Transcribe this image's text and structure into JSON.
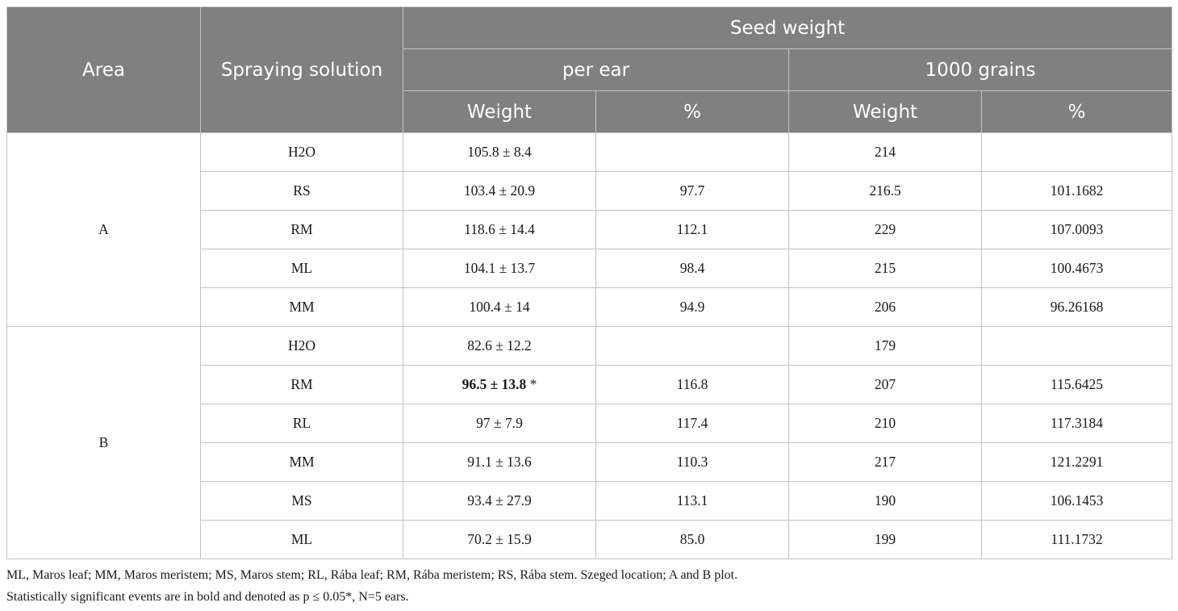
{
  "table": {
    "headers": {
      "area": "Area",
      "spraying_solution": "Spraying solution",
      "seed_weight": "Seed weight",
      "per_ear": "per ear",
      "grains_1000": "1000 grains",
      "weight_1": "Weight",
      "percent_1": "%",
      "weight_2": "Weight",
      "percent_2": "%"
    },
    "groups": [
      {
        "area": "A",
        "rows": [
          {
            "solution": "H2O",
            "ear_weight": "105.8 ± 8.4",
            "ear_pct": "",
            "grain_weight": "214",
            "grain_pct": ""
          },
          {
            "solution": "RS",
            "ear_weight": "103.4 ± 20.9",
            "ear_pct": "97.7",
            "grain_weight": "216.5",
            "grain_pct": "101.1682"
          },
          {
            "solution": "RM",
            "ear_weight": "118.6 ± 14.4",
            "ear_pct": "112.1",
            "grain_weight": "229",
            "grain_pct": "107.0093"
          },
          {
            "solution": "ML",
            "ear_weight": "104.1 ± 13.7",
            "ear_pct": "98.4",
            "grain_weight": "215",
            "grain_pct": "100.4673"
          },
          {
            "solution": "MM",
            "ear_weight": "100.4 ± 14",
            "ear_pct": "94.9",
            "grain_weight": "206",
            "grain_pct": "96.26168"
          }
        ]
      },
      {
        "area": "B",
        "rows": [
          {
            "solution": "H2O",
            "ear_weight": "82.6 ± 12.2",
            "ear_pct": "",
            "grain_weight": "179",
            "grain_pct": ""
          },
          {
            "solution": "RM",
            "ear_weight": "96.5 ± 13.8",
            "ear_weight_mark": "*",
            "ear_pct": "116.8",
            "grain_weight": "207",
            "grain_pct": "115.6425"
          },
          {
            "solution": "RL",
            "ear_weight": "97 ± 7.9",
            "ear_pct": "117.4",
            "grain_weight": "210",
            "grain_pct": "117.3184"
          },
          {
            "solution": "MM",
            "ear_weight": "91.1 ± 13.6",
            "ear_pct": "110.3",
            "grain_weight": "217",
            "grain_pct": "121.2291"
          },
          {
            "solution": "MS",
            "ear_weight": "93.4 ± 27.9",
            "ear_pct": "113.1",
            "grain_weight": "190",
            "grain_pct": "106.1453"
          },
          {
            "solution": "ML",
            "ear_weight": "70.2 ± 15.9",
            "ear_pct": "85.0",
            "grain_weight": "199",
            "grain_pct": "111.1732"
          }
        ]
      }
    ]
  },
  "footnotes": {
    "abbreviations": "ML, Maros leaf; MM, Maros meristem; MS, Maros stem; RL, Rába leaf; RM, Rába meristem; RS, Rába stem. Szeged location; A and B plot.",
    "significance": "Statistically significant events are in bold and denoted as p ≤ 0.05*, N=5 ears."
  }
}
